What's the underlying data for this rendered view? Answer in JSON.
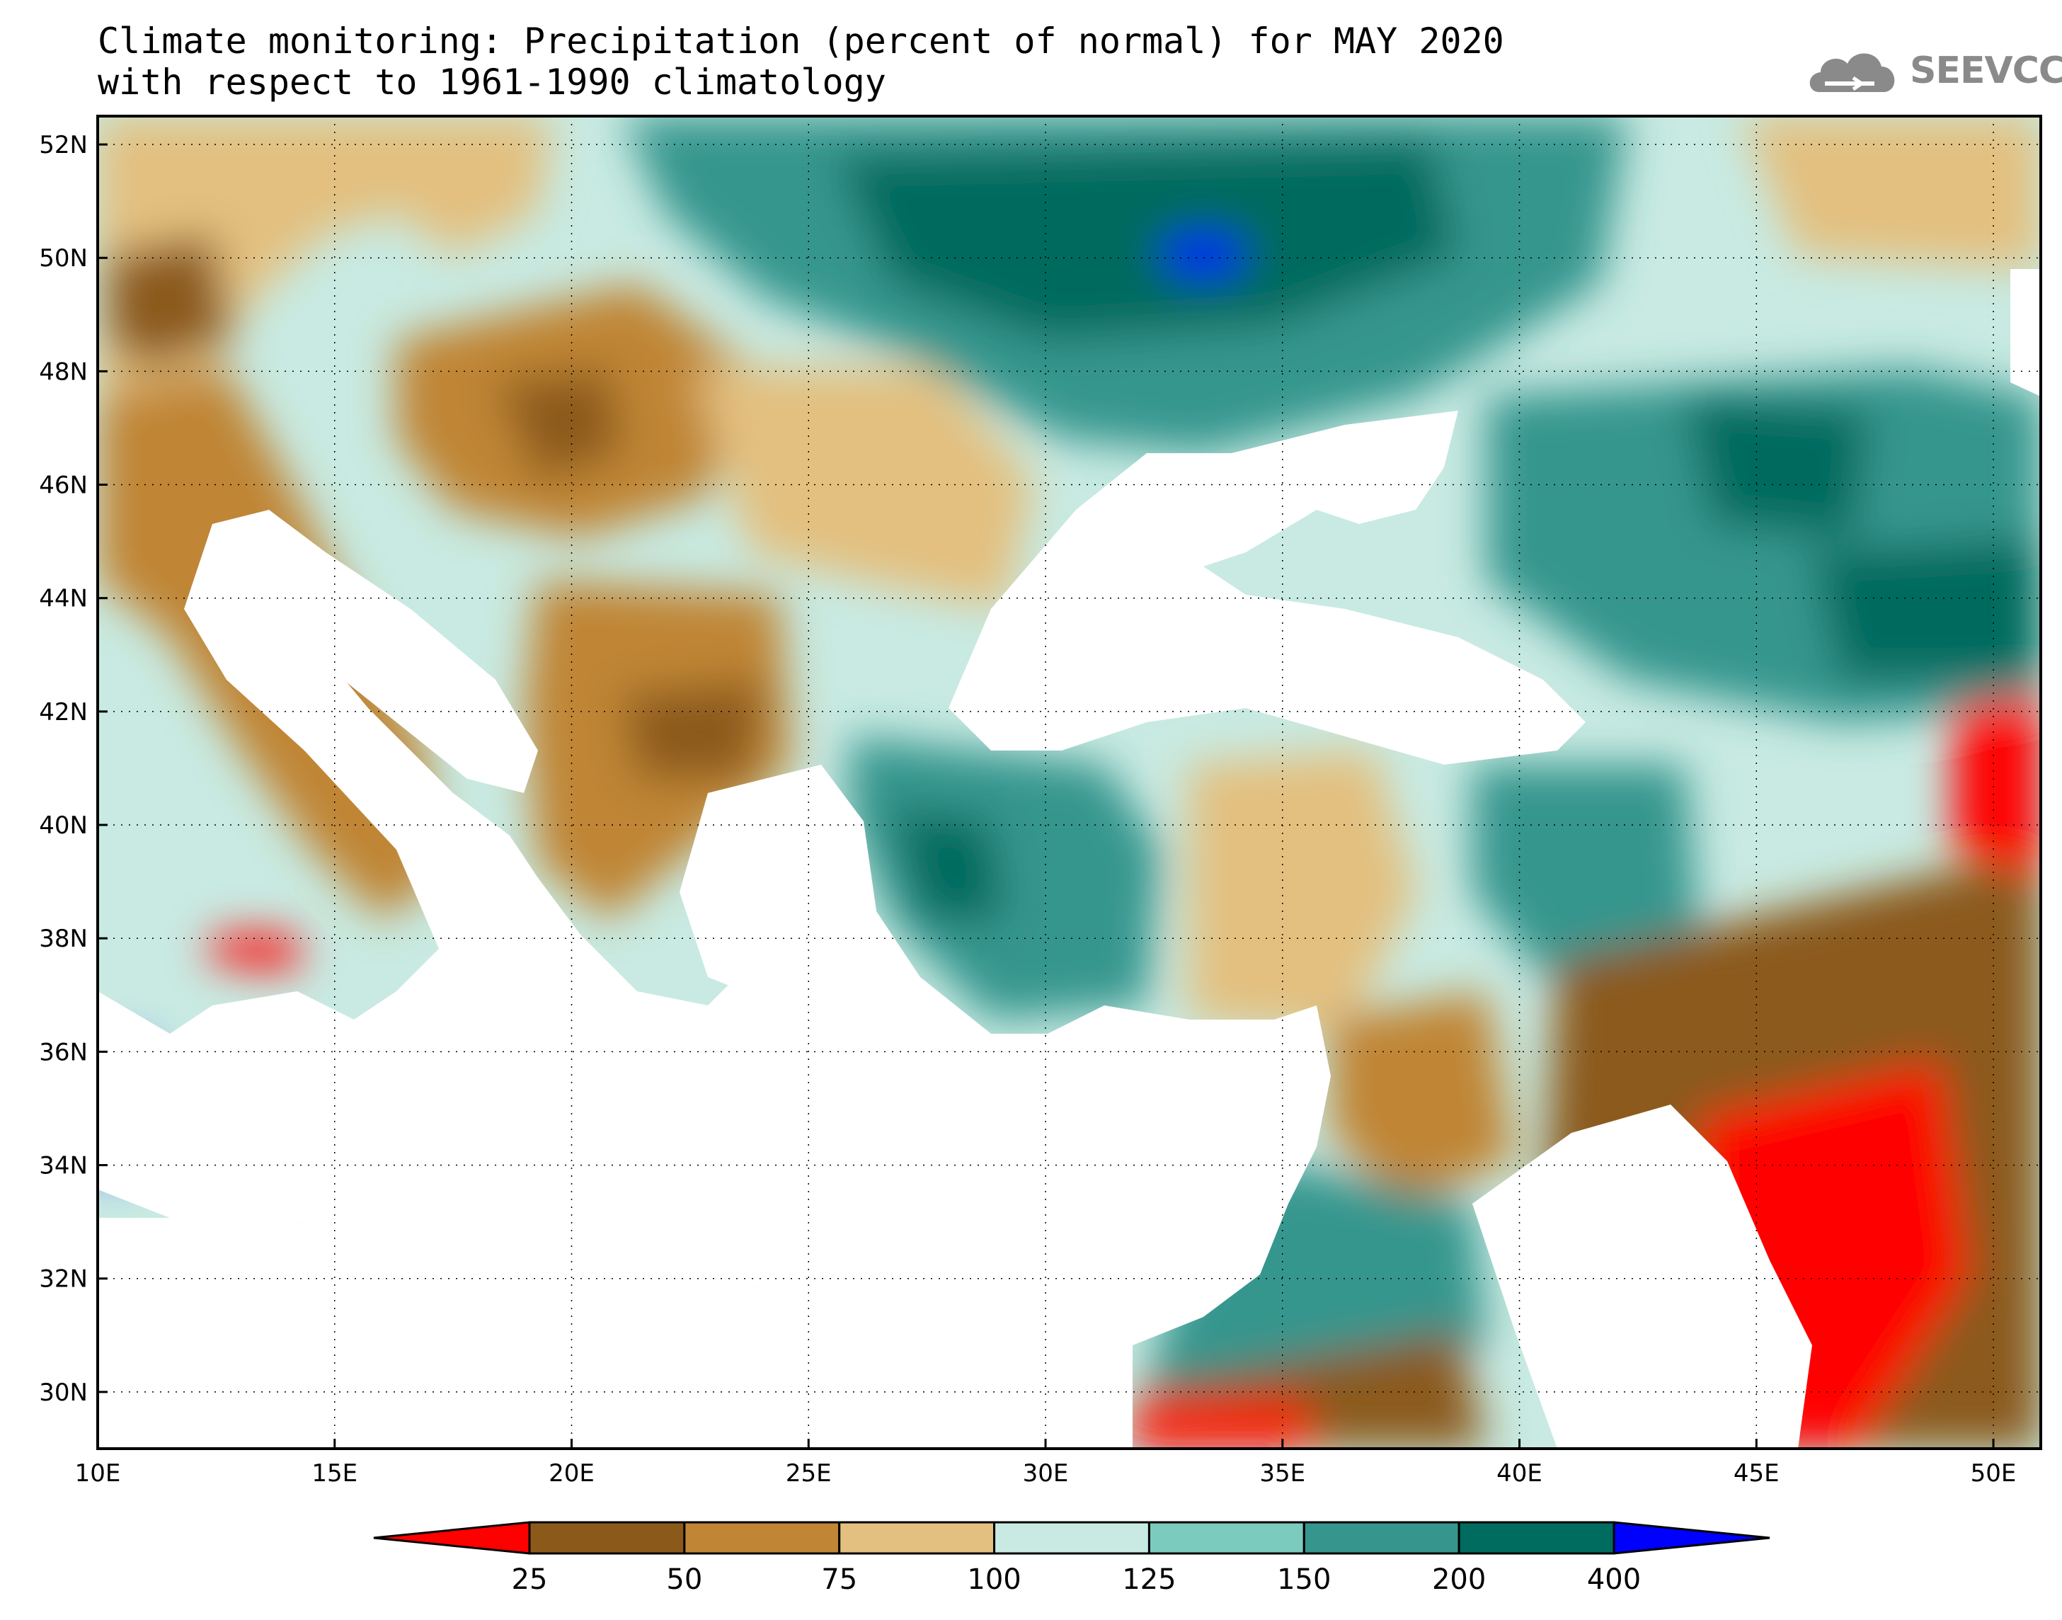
{
  "title": {
    "line1": "Climate monitoring: Precipitation (percent of normal) for MAY 2020",
    "line2": "with respect to 1961-1990 climatology"
  },
  "logo": {
    "text": "SEEVCCC",
    "icon": "cloud-icon",
    "color": "#8a8a8a"
  },
  "map": {
    "lon_range": [
      10,
      51
    ],
    "lat_range": [
      29,
      52.5
    ],
    "x_ticks": [
      "10E",
      "15E",
      "20E",
      "25E",
      "30E",
      "35E",
      "40E",
      "45E",
      "50E"
    ],
    "x_tick_values": [
      10,
      15,
      20,
      25,
      30,
      35,
      40,
      45,
      50
    ],
    "y_ticks": [
      "30N",
      "32N",
      "34N",
      "36N",
      "38N",
      "40N",
      "42N",
      "44N",
      "46N",
      "48N",
      "50N",
      "52N"
    ],
    "y_tick_values": [
      30,
      32,
      34,
      36,
      38,
      40,
      42,
      44,
      46,
      48,
      50,
      52
    ],
    "grid": "dotted"
  },
  "colorbar": {
    "colors": [
      "#ff0000",
      "#8b5a1b",
      "#c08535",
      "#e3c07f",
      "#c8eae2",
      "#7ccbbf",
      "#36968e",
      "#006b5f",
      "#0000ff"
    ],
    "labels": [
      "25",
      "50",
      "75",
      "100",
      "125",
      "150",
      "200",
      "400"
    ],
    "extend": "both"
  }
}
